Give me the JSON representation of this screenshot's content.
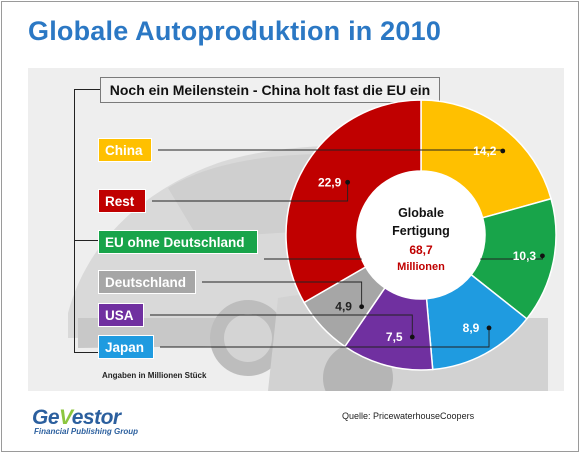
{
  "title": "Globale Autoproduktion in 2010",
  "subtitle": "Noch ein Meilenstein - China holt fast die EU ein",
  "note": "Angaben in Millionen  Stück",
  "source": "Quelle: PricewaterhouseCoopers",
  "logo": {
    "prefix": "Ge",
    "accent": "V",
    "suffix": "estor",
    "tagline": "Financial Publishing Group"
  },
  "center": {
    "line1": "Globale",
    "line2": "Fertigung",
    "total": "68,7",
    "unit": "Millionen"
  },
  "chart_data": {
    "type": "pie",
    "donut": true,
    "unit": "Millionen Stück",
    "total": 68.7,
    "slices": [
      {
        "label": "China",
        "value": 14.2,
        "display": "14,2",
        "color": "#ffc000"
      },
      {
        "label": "EU ohne Deutschland",
        "value": 10.3,
        "display": "10,3",
        "color": "#18a44a"
      },
      {
        "label": "Japan",
        "value": 8.9,
        "display": "8,9",
        "color": "#1f9be0"
      },
      {
        "label": "USA",
        "value": 7.5,
        "display": "7,5",
        "color": "#7030a0"
      },
      {
        "label": "Deutschland",
        "value": 4.9,
        "display": "4,9",
        "color": "#a6a6a6"
      },
      {
        "label": "Rest",
        "value": 22.9,
        "display": "22,9",
        "color": "#c00000"
      }
    ],
    "legend_order": [
      "China",
      "Rest",
      "EU ohne Deutschland",
      "Deutschland",
      "USA",
      "Japan"
    ]
  }
}
